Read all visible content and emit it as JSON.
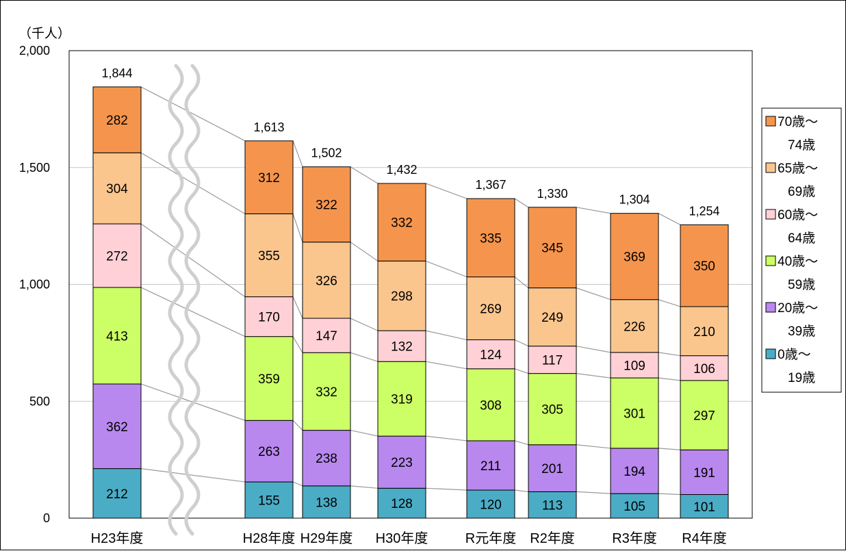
{
  "chart_data": {
    "type": "bar",
    "stacked": true,
    "unit_label": "（千人）",
    "ylim": [
      0,
      2000
    ],
    "y_ticks": [
      {
        "value": 0,
        "label": "0"
      },
      {
        "value": 500,
        "label": "500"
      },
      {
        "value": 1000,
        "label": "1,000"
      },
      {
        "value": 1500,
        "label": "1,500"
      },
      {
        "value": 2000,
        "label": "2,000"
      }
    ],
    "grid": true,
    "legend_position": "right",
    "axis_break_after_first_category": true,
    "categories": [
      "H23年度",
      "H28年度",
      "H29年度",
      "H30年度",
      "R元年度",
      "R2年度",
      "R3年度",
      "R4年度"
    ],
    "totals": [
      "1,844",
      "1,613",
      "1,502",
      "1,432",
      "1,367",
      "1,330",
      "1,304",
      "1,254"
    ],
    "series": [
      {
        "name": "0歳～19歳",
        "legend_lines": [
          "0歳～",
          "19歳"
        ],
        "color": "#4BACC6",
        "values": [
          212,
          155,
          138,
          128,
          120,
          113,
          105,
          101
        ]
      },
      {
        "name": "20歳～39歳",
        "legend_lines": [
          "20歳～",
          "39歳"
        ],
        "color": "#B888EE",
        "values": [
          362,
          263,
          238,
          223,
          211,
          201,
          194,
          191
        ]
      },
      {
        "name": "40歳～59歳",
        "legend_lines": [
          "40歳～",
          "59歳"
        ],
        "color": "#CCFF66",
        "values": [
          413,
          359,
          332,
          319,
          308,
          305,
          301,
          297
        ]
      },
      {
        "name": "60歳～64歳",
        "legend_lines": [
          "60歳～",
          "64歳"
        ],
        "color": "#FFD1D6",
        "values": [
          272,
          170,
          147,
          132,
          124,
          117,
          109,
          106
        ]
      },
      {
        "name": "65歳～69歳",
        "legend_lines": [
          "65歳～",
          "69歳"
        ],
        "color": "#FAC68E",
        "values": [
          304,
          355,
          326,
          298,
          269,
          249,
          226,
          210
        ]
      },
      {
        "name": "70歳～74歳",
        "legend_lines": [
          "70歳～",
          "74歳"
        ],
        "color": "#F5954D",
        "values": [
          282,
          312,
          322,
          332,
          335,
          345,
          369,
          350
        ]
      }
    ]
  }
}
